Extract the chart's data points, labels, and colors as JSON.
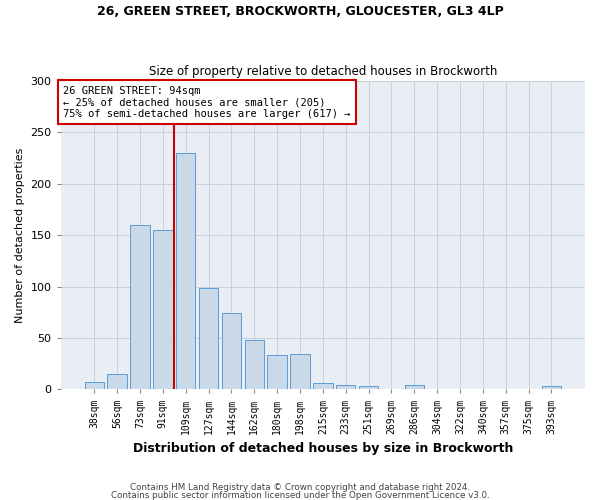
{
  "title1": "26, GREEN STREET, BROCKWORTH, GLOUCESTER, GL3 4LP",
  "title2": "Size of property relative to detached houses in Brockworth",
  "xlabel": "Distribution of detached houses by size in Brockworth",
  "ylabel": "Number of detached properties",
  "bar_color": "#c9d9e8",
  "bar_edge_color": "#5b9bd5",
  "categories": [
    "38sqm",
    "56sqm",
    "73sqm",
    "91sqm",
    "109sqm",
    "127sqm",
    "144sqm",
    "162sqm",
    "180sqm",
    "198sqm",
    "215sqm",
    "233sqm",
    "251sqm",
    "269sqm",
    "286sqm",
    "304sqm",
    "322sqm",
    "340sqm",
    "357sqm",
    "375sqm",
    "393sqm"
  ],
  "values": [
    7,
    15,
    160,
    155,
    230,
    99,
    74,
    48,
    33,
    34,
    6,
    4,
    3,
    0,
    4,
    0,
    0,
    0,
    0,
    0,
    3
  ],
  "vline_color": "#cc0000",
  "vline_pos": 3.5,
  "annotation_text": "26 GREEN STREET: 94sqm\n← 25% of detached houses are smaller (205)\n75% of semi-detached houses are larger (617) →",
  "annotation_box_color": "#ffffff",
  "annotation_box_edge": "#cc0000",
  "ylim": [
    0,
    300
  ],
  "yticks": [
    0,
    50,
    100,
    150,
    200,
    250,
    300
  ],
  "footer1": "Contains HM Land Registry data © Crown copyright and database right 2024.",
  "footer2": "Contains public sector information licensed under the Open Government Licence v3.0.",
  "grid_color": "#c8d0d8",
  "bg_color": "#e8eef4",
  "fig_width": 6.0,
  "fig_height": 5.0
}
